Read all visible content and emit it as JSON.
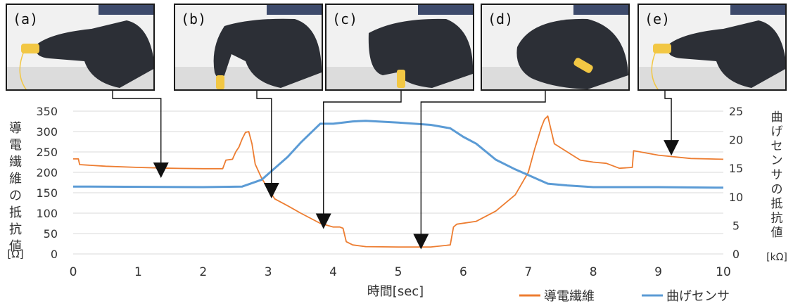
{
  "panels": [
    {
      "label": "(a)",
      "pose": "straight"
    },
    {
      "label": "(b)",
      "pose": "bent-down"
    },
    {
      "label": "(c)",
      "pose": "curled"
    },
    {
      "label": "(d)",
      "pose": "fist"
    },
    {
      "label": "(e)",
      "pose": "straight"
    }
  ],
  "colors": {
    "fiber": "#ED7D31",
    "sensor": "#5B9BD5",
    "grid": "#d9d9d9",
    "glove": "#2c2f36",
    "clip": "#f2c744"
  },
  "chart_data": {
    "type": "line",
    "xlabel": "時間[sec]",
    "ylabel_left": "導電繊維の抵抗値",
    "ylabel_left_unit": "[Ω]",
    "ylabel_right": "曲げセンサの抵抗値",
    "ylabel_right_unit": "[kΩ]",
    "xlim": [
      0,
      10
    ],
    "ylim_left": [
      0,
      350
    ],
    "ylim_right": [
      0,
      25
    ],
    "x_ticks": [
      "0",
      "1",
      "2",
      "3",
      "4",
      "5",
      "6",
      "7",
      "8",
      "9",
      "10"
    ],
    "y_left_ticks": [
      "0",
      "50",
      "100",
      "150",
      "200",
      "250",
      "300",
      "350"
    ],
    "y_right_ticks": [
      "0",
      "5",
      "10",
      "15",
      "20",
      "25"
    ],
    "grid": "horizontal",
    "legend_position": "bottom-right",
    "series": [
      {
        "name": "導電繊維",
        "axis": "left",
        "points": [
          [
            0.0,
            233
          ],
          [
            0.08,
            233
          ],
          [
            0.1,
            219
          ],
          [
            0.5,
            215
          ],
          [
            1.0,
            212
          ],
          [
            1.5,
            210
          ],
          [
            2.0,
            209
          ],
          [
            2.3,
            209
          ],
          [
            2.35,
            230
          ],
          [
            2.45,
            232
          ],
          [
            2.5,
            250
          ],
          [
            2.55,
            262
          ],
          [
            2.6,
            282
          ],
          [
            2.65,
            298
          ],
          [
            2.7,
            300
          ],
          [
            2.75,
            270
          ],
          [
            2.8,
            220
          ],
          [
            2.9,
            185
          ],
          [
            3.0,
            160
          ],
          [
            3.1,
            135
          ],
          [
            3.3,
            118
          ],
          [
            3.5,
            100
          ],
          [
            3.8,
            75
          ],
          [
            4.0,
            66
          ],
          [
            4.1,
            66
          ],
          [
            4.15,
            63
          ],
          [
            4.2,
            30
          ],
          [
            4.3,
            22
          ],
          [
            4.5,
            18
          ],
          [
            5.0,
            17
          ],
          [
            5.5,
            17
          ],
          [
            5.8,
            22
          ],
          [
            5.85,
            66
          ],
          [
            5.9,
            73
          ],
          [
            6.2,
            80
          ],
          [
            6.5,
            105
          ],
          [
            6.8,
            145
          ],
          [
            7.0,
            200
          ],
          [
            7.1,
            258
          ],
          [
            7.2,
            310
          ],
          [
            7.25,
            330
          ],
          [
            7.3,
            338
          ],
          [
            7.4,
            270
          ],
          [
            7.6,
            250
          ],
          [
            7.8,
            230
          ],
          [
            8.0,
            225
          ],
          [
            8.2,
            222
          ],
          [
            8.4,
            210
          ],
          [
            8.6,
            212
          ],
          [
            8.62,
            253
          ],
          [
            8.8,
            248
          ],
          [
            9.0,
            242
          ],
          [
            9.5,
            234
          ],
          [
            10.0,
            232
          ]
        ]
      },
      {
        "name": "曲げセンサ",
        "axis": "right",
        "points": [
          [
            0.0,
            11.8
          ],
          [
            2.0,
            11.7
          ],
          [
            2.6,
            11.8
          ],
          [
            2.9,
            13.0
          ],
          [
            3.0,
            14.0
          ],
          [
            3.3,
            17.0
          ],
          [
            3.5,
            19.5
          ],
          [
            3.8,
            22.8
          ],
          [
            4.0,
            22.8
          ],
          [
            4.3,
            23.2
          ],
          [
            4.5,
            23.3
          ],
          [
            5.0,
            23.0
          ],
          [
            5.5,
            22.6
          ],
          [
            5.8,
            22.0
          ],
          [
            6.0,
            20.5
          ],
          [
            6.2,
            19.3
          ],
          [
            6.5,
            16.5
          ],
          [
            6.8,
            14.8
          ],
          [
            7.0,
            13.8
          ],
          [
            7.3,
            12.3
          ],
          [
            7.6,
            12.0
          ],
          [
            8.0,
            11.7
          ],
          [
            9.0,
            11.7
          ],
          [
            10.0,
            11.6
          ]
        ]
      }
    ],
    "annotations": [
      {
        "panel": "(a)",
        "x": 1.35,
        "y": 200
      },
      {
        "panel": "(b)",
        "x": 3.05,
        "y": 150
      },
      {
        "panel": "(c)",
        "x": 3.85,
        "y": 75
      },
      {
        "panel": "(d)",
        "x": 5.35,
        "y": 25
      },
      {
        "panel": "(e)",
        "x": 9.2,
        "y": 255
      }
    ]
  }
}
